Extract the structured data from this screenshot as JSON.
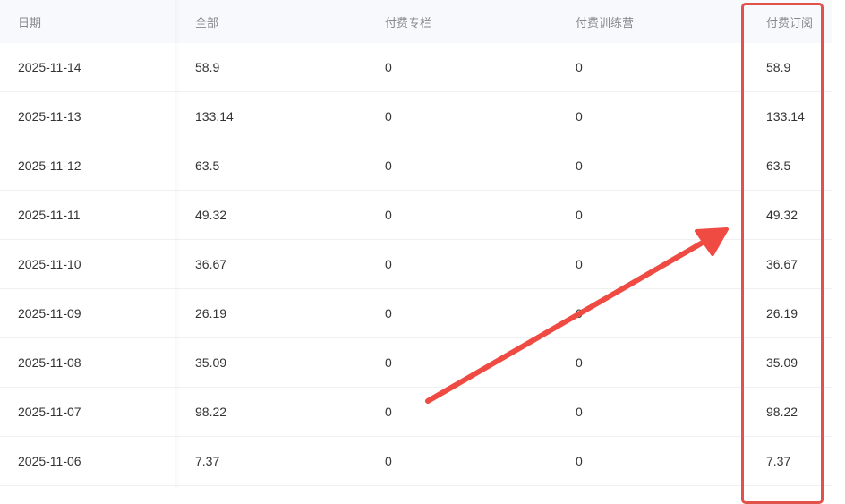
{
  "table": {
    "columns": [
      "日期",
      "全部",
      "付费专栏",
      "付费训练营",
      "付费订阅"
    ],
    "rows": [
      [
        "2025-11-14",
        "58.9",
        "0",
        "0",
        "58.9"
      ],
      [
        "2025-11-13",
        "133.14",
        "0",
        "0",
        "133.14"
      ],
      [
        "2025-11-12",
        "63.5",
        "0",
        "0",
        "63.5"
      ],
      [
        "2025-11-11",
        "49.32",
        "0",
        "0",
        "49.32"
      ],
      [
        "2025-11-10",
        "36.67",
        "0",
        "0",
        "36.67"
      ],
      [
        "2025-11-09",
        "26.19",
        "0",
        "0",
        "26.19"
      ],
      [
        "2025-11-08",
        "35.09",
        "0",
        "0",
        "35.09"
      ],
      [
        "2025-11-07",
        "98.22",
        "0",
        "0",
        "98.22"
      ],
      [
        "2025-11-06",
        "7.37",
        "0",
        "0",
        "7.37"
      ]
    ]
  },
  "annotation": {
    "highlight_column": "付费订阅",
    "color": "#e0524a",
    "arrow_color": "#ef4b43"
  }
}
